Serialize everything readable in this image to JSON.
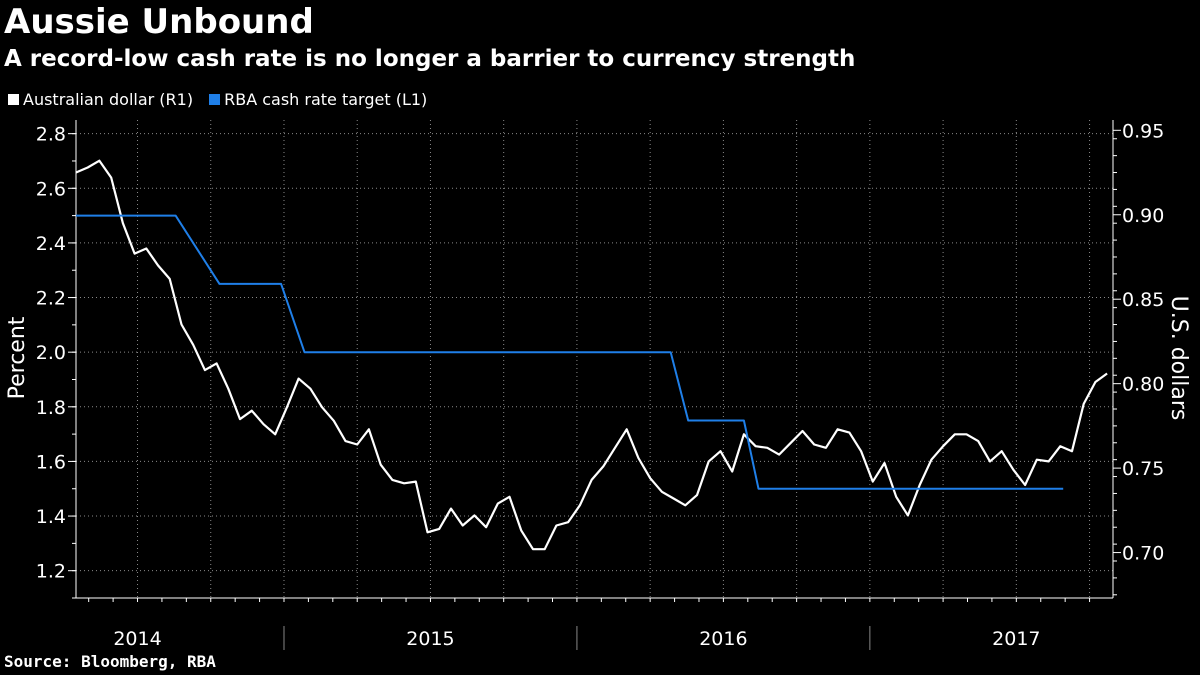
{
  "header": {
    "title": "Aussie Unbound",
    "subtitle": "A record-low cash rate is no longer a barrier to currency strength"
  },
  "footer": {
    "source": "Source: Bloomberg, RBA"
  },
  "colors": {
    "aud": "#ffffff",
    "rba": "#1f7fe8",
    "grid": "#8a8a8a",
    "background": "#000000"
  },
  "chart_data": {
    "type": "line",
    "title": "Aussie Unbound",
    "subtitle": "A record-low cash rate is no longer a barrier to currency strength",
    "x_range": [
      2013.79,
      2017.33
    ],
    "x_ticks": [
      {
        "label": "2014",
        "value": 2014.0
      },
      {
        "label": "2015",
        "value": 2015.0
      },
      {
        "label": "2016",
        "value": 2016.0
      },
      {
        "label": "2017",
        "value": 2017.0
      }
    ],
    "left_axis": {
      "label": "Percent",
      "range": [
        1.1,
        2.85
      ],
      "ticks": [
        1.2,
        1.4,
        1.6,
        1.8,
        2.0,
        2.2,
        2.4,
        2.6,
        2.8
      ],
      "tick_labels": [
        "1.2",
        "1.4",
        "1.6",
        "1.8",
        "2.0",
        "2.2",
        "2.4",
        "2.6",
        "2.8"
      ]
    },
    "right_axis": {
      "label": "U.S. dollars",
      "range": [
        0.6731,
        0.9561
      ],
      "ticks": [
        0.7,
        0.75,
        0.8,
        0.85,
        0.9,
        0.95
      ],
      "tick_labels": [
        "0.70",
        "0.75",
        "0.80",
        "0.85",
        "0.90",
        "0.95"
      ]
    },
    "series": [
      {
        "name": "Australian dollar (R1)",
        "axis": "right",
        "color": "#ffffff",
        "x": [
          2013.79,
          2013.83,
          2013.87,
          2013.91,
          2013.95,
          2013.99,
          2014.03,
          2014.07,
          2014.11,
          2014.15,
          2014.19,
          2014.23,
          2014.27,
          2014.31,
          2014.35,
          2014.39,
          2014.43,
          2014.47,
          2014.51,
          2014.55,
          2014.59,
          2014.63,
          2014.67,
          2014.71,
          2014.75,
          2014.79,
          2014.83,
          2014.87,
          2014.91,
          2014.95,
          2014.99,
          2015.03,
          2015.07,
          2015.11,
          2015.15,
          2015.19,
          2015.23,
          2015.27,
          2015.31,
          2015.35,
          2015.39,
          2015.43,
          2015.47,
          2015.51,
          2015.55,
          2015.59,
          2015.63,
          2015.67,
          2015.71,
          2015.75,
          2015.79,
          2015.83,
          2015.87,
          2015.91,
          2015.95,
          2015.99,
          2016.03,
          2016.07,
          2016.11,
          2016.15,
          2016.19,
          2016.23,
          2016.27,
          2016.31,
          2016.35,
          2016.39,
          2016.43,
          2016.47,
          2016.51,
          2016.55,
          2016.59,
          2016.63,
          2016.67,
          2016.71,
          2016.75,
          2016.79,
          2016.83,
          2016.87,
          2016.91,
          2016.95,
          2016.99,
          2017.03,
          2017.07,
          2017.11,
          2017.15,
          2017.19,
          2017.23,
          2017.27,
          2017.31
        ],
        "values": [
          0.925,
          0.928,
          0.932,
          0.922,
          0.895,
          0.877,
          0.88,
          0.87,
          0.862,
          0.835,
          0.823,
          0.808,
          0.812,
          0.797,
          0.779,
          0.784,
          0.776,
          0.77,
          0.786,
          0.803,
          0.797,
          0.786,
          0.778,
          0.766,
          0.764,
          0.773,
          0.752,
          0.743,
          0.741,
          0.742,
          0.712,
          0.714,
          0.726,
          0.716,
          0.722,
          0.715,
          0.729,
          0.733,
          0.713,
          0.702,
          0.702,
          0.716,
          0.718,
          0.728,
          0.743,
          0.751,
          0.762,
          0.773,
          0.756,
          0.744,
          0.736,
          0.732,
          0.728,
          0.734,
          0.754,
          0.76,
          0.748,
          0.77,
          0.763,
          0.762,
          0.758,
          0.765,
          0.772,
          0.764,
          0.762,
          0.773,
          0.771,
          0.76,
          0.742,
          0.753,
          0.733,
          0.722,
          0.74,
          0.755,
          0.763,
          0.77,
          0.77,
          0.766,
          0.754,
          0.76,
          0.749,
          0.74,
          0.755,
          0.754,
          0.763,
          0.76,
          0.788,
          0.801,
          0.806
        ]
      },
      {
        "name": "RBA cash rate target (L1)",
        "axis": "left",
        "color": "#1f7fe8",
        "step": true,
        "x": [
          2013.79,
          2014.13,
          2014.28,
          2014.49,
          2014.57,
          2015.82,
          2015.88,
          2016.07,
          2016.12,
          2017.16
        ],
        "values": [
          2.5,
          2.5,
          2.25,
          2.25,
          2.0,
          2.0,
          1.75,
          1.75,
          1.5,
          1.5
        ]
      }
    ],
    "grid": true,
    "legend_position": "top-left"
  }
}
